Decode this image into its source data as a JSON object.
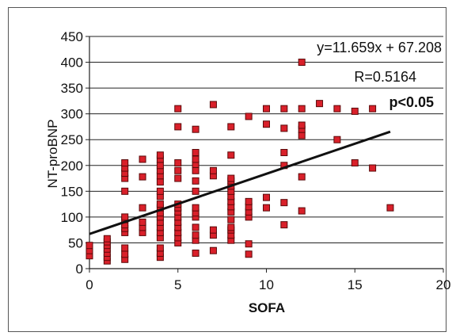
{
  "chart_data": {
    "type": "scatter",
    "xlabel": "SOFA",
    "ylabel": "NT-proBNP",
    "xlim": [
      0,
      20
    ],
    "ylim": [
      0,
      450
    ],
    "x_ticks": [
      "0",
      "5",
      "10",
      "15",
      "20"
    ],
    "y_ticks": [
      "0",
      "50",
      "100",
      "150",
      "200",
      "250",
      "300",
      "350",
      "400",
      "450"
    ],
    "grid": "horizontal",
    "marker_color": "#d9202a",
    "marker_border": "#5a0a0a",
    "regression": {
      "slope": 11.659,
      "intercept": 67.208,
      "x_range": [
        0,
        17
      ]
    },
    "annotations": {
      "equation": "y=11.659x + 67.208",
      "r_value": "R=0.5164",
      "p_value": "p<0.05"
    },
    "points": [
      [
        0,
        25
      ],
      [
        0,
        35
      ],
      [
        0,
        45
      ],
      [
        1,
        15
      ],
      [
        1,
        22
      ],
      [
        1,
        30
      ],
      [
        1,
        38
      ],
      [
        1,
        45
      ],
      [
        1,
        52
      ],
      [
        1,
        58
      ],
      [
        2,
        18
      ],
      [
        2,
        28
      ],
      [
        2,
        40
      ],
      [
        2,
        70
      ],
      [
        2,
        78
      ],
      [
        2,
        85
      ],
      [
        2,
        95
      ],
      [
        2,
        100
      ],
      [
        2,
        150
      ],
      [
        2,
        175
      ],
      [
        2,
        185
      ],
      [
        2,
        195
      ],
      [
        2,
        205
      ],
      [
        3,
        70
      ],
      [
        3,
        80
      ],
      [
        3,
        90
      ],
      [
        3,
        118
      ],
      [
        3,
        178
      ],
      [
        3,
        212
      ],
      [
        4,
        22
      ],
      [
        4,
        30
      ],
      [
        4,
        40
      ],
      [
        4,
        60
      ],
      [
        4,
        70
      ],
      [
        4,
        80
      ],
      [
        4,
        90
      ],
      [
        4,
        100
      ],
      [
        4,
        108
      ],
      [
        4,
        118
      ],
      [
        4,
        125
      ],
      [
        4,
        140
      ],
      [
        4,
        150
      ],
      [
        4,
        168
      ],
      [
        4,
        180
      ],
      [
        4,
        190
      ],
      [
        4,
        200
      ],
      [
        4,
        212
      ],
      [
        4,
        220
      ],
      [
        5,
        50
      ],
      [
        5,
        60
      ],
      [
        5,
        70
      ],
      [
        5,
        80
      ],
      [
        5,
        90
      ],
      [
        5,
        100
      ],
      [
        5,
        110
      ],
      [
        5,
        118
      ],
      [
        5,
        125
      ],
      [
        5,
        175
      ],
      [
        5,
        190
      ],
      [
        5,
        205
      ],
      [
        5,
        275
      ],
      [
        5,
        310
      ],
      [
        6,
        30
      ],
      [
        6,
        55
      ],
      [
        6,
        65
      ],
      [
        6,
        80
      ],
      [
        6,
        100
      ],
      [
        6,
        108
      ],
      [
        6,
        118
      ],
      [
        6,
        150
      ],
      [
        6,
        170
      ],
      [
        6,
        190
      ],
      [
        6,
        202
      ],
      [
        6,
        212
      ],
      [
        6,
        225
      ],
      [
        6,
        270
      ],
      [
        7,
        35
      ],
      [
        7,
        65
      ],
      [
        7,
        75
      ],
      [
        7,
        180
      ],
      [
        7,
        190
      ],
      [
        7,
        318
      ],
      [
        8,
        55
      ],
      [
        8,
        65
      ],
      [
        8,
        75
      ],
      [
        8,
        80
      ],
      [
        8,
        95
      ],
      [
        8,
        110
      ],
      [
        8,
        120
      ],
      [
        8,
        130
      ],
      [
        8,
        140
      ],
      [
        8,
        150
      ],
      [
        8,
        160
      ],
      [
        8,
        170
      ],
      [
        8,
        175
      ],
      [
        8,
        220
      ],
      [
        8,
        275
      ],
      [
        9,
        28
      ],
      [
        9,
        48
      ],
      [
        9,
        100
      ],
      [
        9,
        110
      ],
      [
        9,
        120
      ],
      [
        9,
        130
      ],
      [
        9,
        295
      ],
      [
        10,
        118
      ],
      [
        10,
        138
      ],
      [
        10,
        280
      ],
      [
        10,
        310
      ],
      [
        11,
        85
      ],
      [
        11,
        128
      ],
      [
        11,
        200
      ],
      [
        11,
        225
      ],
      [
        11,
        272
      ],
      [
        11,
        310
      ],
      [
        12,
        112
      ],
      [
        12,
        178
      ],
      [
        12,
        258
      ],
      [
        12,
        270
      ],
      [
        12,
        278
      ],
      [
        12,
        310
      ],
      [
        12,
        400
      ],
      [
        13,
        320
      ],
      [
        14,
        250
      ],
      [
        14,
        310
      ],
      [
        15,
        205
      ],
      [
        15,
        305
      ],
      [
        16,
        195
      ],
      [
        16,
        310
      ],
      [
        17,
        118
      ]
    ]
  }
}
